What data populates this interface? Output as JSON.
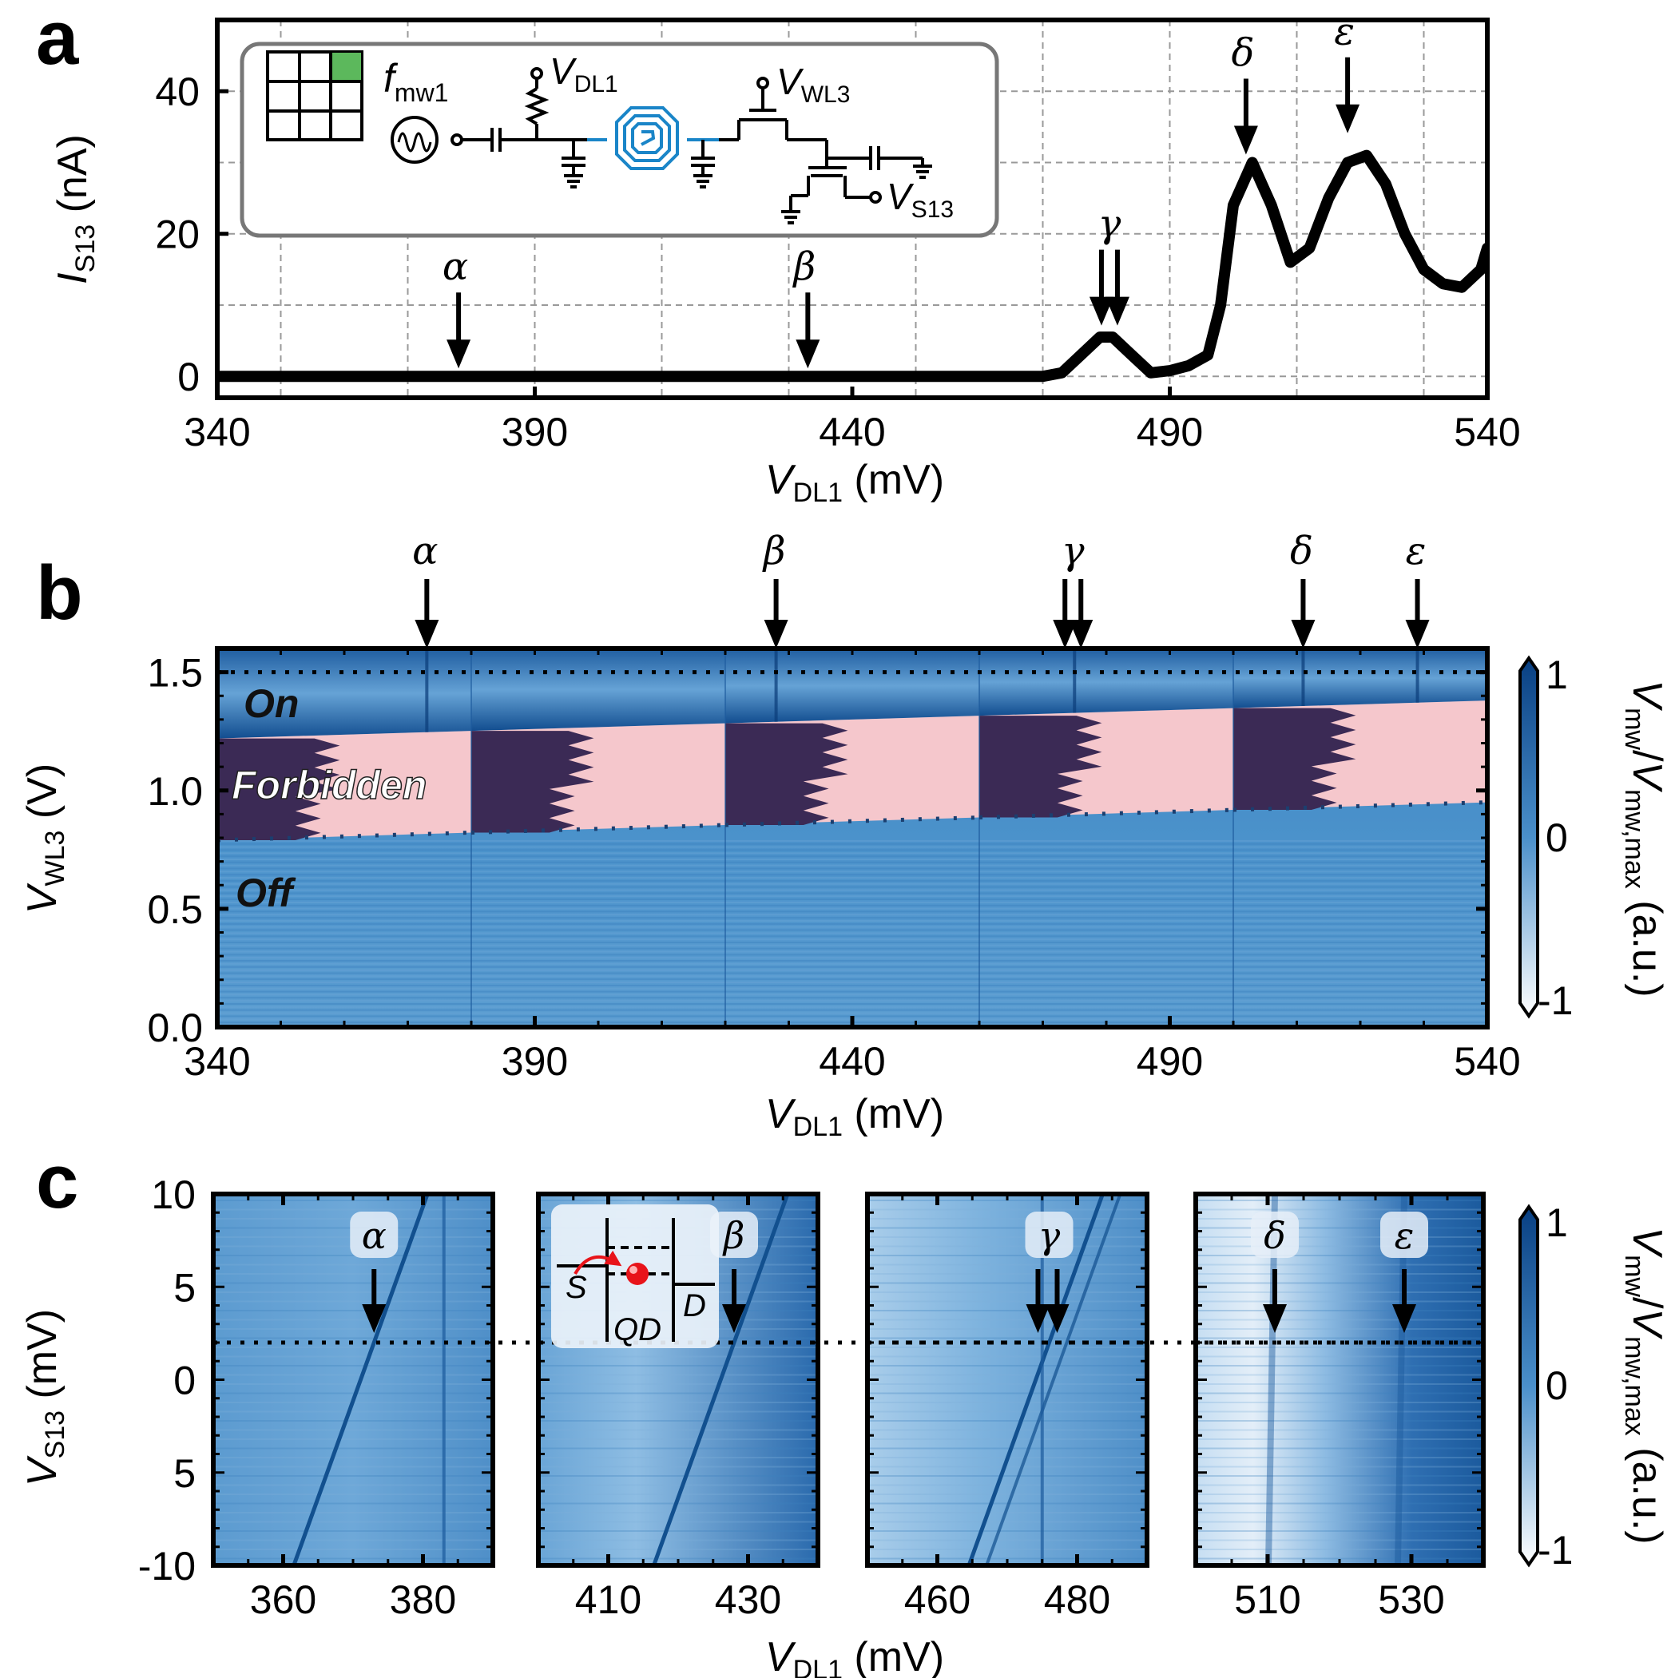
{
  "colors": {
    "map_dark": "#083f82",
    "map_mid": "#3f86c3",
    "map_light": "#dde9f5",
    "forbidden": "#f5c7cc",
    "dark_region": "#3b2a55",
    "inset_blue": "#1a85c8",
    "inset_green": "#5cb85c",
    "electron": "#e8141a"
  },
  "chart_data": [
    {
      "panel": "a",
      "type": "line",
      "xlabel_main": "V",
      "xlabel_sub": "DL1",
      "xlabel_unit": " (mV)",
      "ylabel_main": "I",
      "ylabel_sub": "S13",
      "ylabel_unit": " (nA)",
      "xlim": [
        340,
        540
      ],
      "ylim": [
        -3,
        50
      ],
      "xticks": [
        340,
        390,
        440,
        490,
        540
      ],
      "yticks": [
        0,
        20,
        40
      ],
      "x": [
        340,
        350,
        360,
        370,
        380,
        390,
        400,
        410,
        420,
        430,
        440,
        450,
        460,
        470,
        473,
        476,
        479,
        481,
        484,
        487,
        490,
        493,
        496,
        498,
        500,
        503,
        506,
        509,
        512,
        515,
        518,
        521,
        524,
        527,
        530,
        533,
        536,
        539,
        540
      ],
      "values": [
        0,
        0,
        0,
        0,
        0,
        0,
        0,
        0,
        0,
        0,
        0,
        0,
        0,
        0,
        0.5,
        3,
        5.5,
        5.5,
        3,
        0.5,
        0.8,
        1.5,
        3,
        10,
        24,
        30,
        24,
        16,
        18,
        25,
        30,
        31,
        27,
        20,
        15,
        13,
        12.5,
        15,
        18
      ],
      "annotations": [
        {
          "label": "α",
          "x": 378,
          "arrow_to": 0
        },
        {
          "label": "β",
          "x": 433,
          "arrow_to": 0
        },
        {
          "label": "γ",
          "x": 481,
          "arrow_to": 6,
          "double": true
        },
        {
          "label": "δ",
          "x": 502,
          "arrow_to": 30
        },
        {
          "label": "ε",
          "x": 518,
          "arrow_to": 33
        }
      ],
      "inset": {
        "fmw_main": "f",
        "fmw_sub": "mw1",
        "vdl_main": "V",
        "vdl_sub": "DL1",
        "vwl_main": "V",
        "vwl_sub": "WL3",
        "vs_main": "V",
        "vs_sub": "S13"
      }
    },
    {
      "panel": "b",
      "type": "heatmap",
      "xlabel_main": "V",
      "xlabel_sub": "DL1",
      "xlabel_unit": " (mV)",
      "ylabel_main": "V",
      "ylabel_sub": "WL3",
      "ylabel_unit": " (V)",
      "xlim": [
        340,
        540
      ],
      "ylim": [
        0.0,
        1.6
      ],
      "xticks": [
        340,
        390,
        440,
        490,
        540
      ],
      "yticks": [
        "0.0",
        "0.5",
        "1.0",
        "1.5"
      ],
      "dotted_line_y": 1.5,
      "segments": [
        340,
        380,
        420,
        460,
        500,
        540
      ],
      "band_lower": [
        [
          340,
          0.79
        ],
        [
          540,
          0.95
        ]
      ],
      "band_upper": [
        [
          340,
          1.22
        ],
        [
          540,
          1.38
        ]
      ],
      "regions": {
        "on": "On",
        "forbidden": "Forbidden",
        "off": "Off"
      },
      "arrows": [
        {
          "label": "α",
          "x": 373
        },
        {
          "label": "β",
          "x": 428
        },
        {
          "label": "γ",
          "x": 475,
          "double": true
        },
        {
          "label": "δ",
          "x": 511
        },
        {
          "label": "ε",
          "x": 529
        }
      ],
      "colorbar": {
        "max": "1",
        "mid": "0",
        "min": "-1"
      }
    },
    {
      "panel": "c",
      "type": "heatmap",
      "ylabel_main": "V",
      "ylabel_sub": "S13",
      "ylabel_unit": " (mV)",
      "xlabel_main": "V",
      "xlabel_sub": "DL1",
      "xlabel_unit": " (mV)",
      "ylim": [
        -10,
        10
      ],
      "ytick_labels": [
        "10",
        "5",
        "0",
        "5",
        "-10"
      ],
      "dotted_line_y": 2,
      "subpanels": [
        {
          "xlim": [
            350,
            390
          ],
          "xticks": [
            "360",
            "380"
          ],
          "tick_values": [
            360,
            380
          ],
          "arrows": [
            {
              "label": "α",
              "x": 373
            }
          ]
        },
        {
          "xlim": [
            400,
            440
          ],
          "xticks": [
            "410",
            "430"
          ],
          "tick_values": [
            410,
            430
          ],
          "arrows": [
            {
              "label": "β",
              "x": 428
            }
          ]
        },
        {
          "xlim": [
            450,
            490
          ],
          "xticks": [
            "460",
            "480"
          ],
          "tick_values": [
            460,
            480
          ],
          "arrows": [
            {
              "label": "γ",
              "x": 476,
              "double": true
            }
          ]
        },
        {
          "xlim": [
            500,
            540
          ],
          "xticks": [
            "510",
            "530"
          ],
          "tick_values": [
            510,
            530
          ],
          "arrows": [
            {
              "label": "δ",
              "x": 511
            },
            {
              "label": "ε",
              "x": 529
            }
          ]
        }
      ],
      "inset": {
        "s": "S",
        "d": "D",
        "qd": "QD"
      },
      "colorbar": {
        "max": "1",
        "mid": "0",
        "min": "-1"
      }
    }
  ],
  "colorbar_label": {
    "main1": "V",
    "sub1": "mw",
    "slash": "/",
    "main2": "V",
    "sub2": "mw,max",
    "unit": " (a.u.)"
  },
  "panel_labels": [
    "a",
    "b",
    "c"
  ]
}
